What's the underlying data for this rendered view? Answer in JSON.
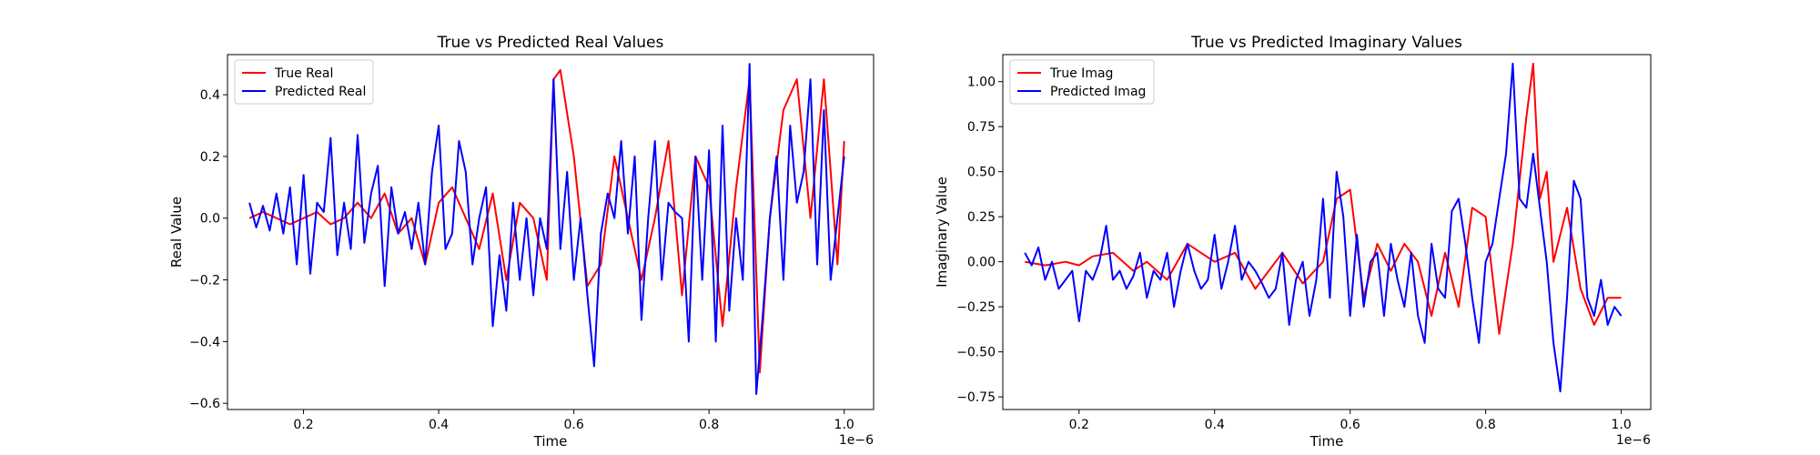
{
  "chart_data": [
    {
      "type": "line",
      "title": "True vs Predicted Real Values",
      "xlabel": "Time",
      "ylabel": "Real Value",
      "x_offset_label": "1e−6",
      "xlim": [
        0.0875,
        1.0435
      ],
      "ylim": [
        -0.62,
        0.53
      ],
      "xticks": [
        {
          "v": 0.2,
          "label": "0.2"
        },
        {
          "v": 0.4,
          "label": "0.4"
        },
        {
          "v": 0.6,
          "label": "0.6"
        },
        {
          "v": 0.8,
          "label": "0.8"
        },
        {
          "v": 1.0,
          "label": "1.0"
        }
      ],
      "yticks": [
        {
          "v": -0.6,
          "label": "−0.6"
        },
        {
          "v": -0.4,
          "label": "−0.4"
        },
        {
          "v": -0.2,
          "label": "−0.2"
        },
        {
          "v": 0.0,
          "label": "0.0"
        },
        {
          "v": 0.2,
          "label": "0.2"
        },
        {
          "v": 0.4,
          "label": "0.4"
        }
      ],
      "legend_position": "top-left",
      "grid": false,
      "series": [
        {
          "name": "True Real",
          "color": "#ff0000",
          "x": [
            0.12,
            0.14,
            0.16,
            0.18,
            0.2,
            0.22,
            0.24,
            0.26,
            0.28,
            0.3,
            0.32,
            0.34,
            0.36,
            0.38,
            0.4,
            0.42,
            0.44,
            0.46,
            0.48,
            0.5,
            0.52,
            0.54,
            0.56,
            0.57,
            0.58,
            0.6,
            0.62,
            0.64,
            0.66,
            0.68,
            0.7,
            0.72,
            0.74,
            0.76,
            0.78,
            0.8,
            0.82,
            0.84,
            0.86,
            0.875,
            0.89,
            0.91,
            0.93,
            0.95,
            0.97,
            0.99,
            1.0
          ],
          "y": [
            0.0,
            0.02,
            0.0,
            -0.02,
            0.0,
            0.02,
            -0.02,
            0.0,
            0.05,
            0.0,
            0.08,
            -0.05,
            0.0,
            -0.15,
            0.05,
            0.1,
            0.0,
            -0.1,
            0.08,
            -0.2,
            0.05,
            0.0,
            -0.2,
            0.45,
            0.48,
            0.2,
            -0.22,
            -0.15,
            0.2,
            0.0,
            -0.2,
            0.0,
            0.25,
            -0.25,
            0.2,
            0.1,
            -0.35,
            0.1,
            0.45,
            -0.5,
            0.0,
            0.35,
            0.45,
            0.0,
            0.45,
            -0.15,
            0.25
          ]
        },
        {
          "name": "Predicted Real",
          "color": "#0000ff",
          "x": [
            0.12,
            0.13,
            0.14,
            0.15,
            0.16,
            0.17,
            0.18,
            0.19,
            0.2,
            0.21,
            0.22,
            0.23,
            0.24,
            0.25,
            0.26,
            0.27,
            0.28,
            0.29,
            0.3,
            0.31,
            0.32,
            0.33,
            0.34,
            0.35,
            0.36,
            0.37,
            0.38,
            0.39,
            0.4,
            0.41,
            0.42,
            0.43,
            0.44,
            0.45,
            0.46,
            0.47,
            0.48,
            0.49,
            0.5,
            0.51,
            0.52,
            0.53,
            0.54,
            0.55,
            0.56,
            0.57,
            0.58,
            0.59,
            0.6,
            0.61,
            0.62,
            0.63,
            0.64,
            0.65,
            0.66,
            0.67,
            0.68,
            0.69,
            0.7,
            0.71,
            0.72,
            0.73,
            0.74,
            0.75,
            0.76,
            0.77,
            0.78,
            0.79,
            0.8,
            0.81,
            0.82,
            0.83,
            0.84,
            0.85,
            0.86,
            0.87,
            0.88,
            0.89,
            0.9,
            0.91,
            0.92,
            0.93,
            0.94,
            0.95,
            0.96,
            0.97,
            0.98,
            0.99,
            1.0
          ],
          "y": [
            0.05,
            -0.03,
            0.04,
            -0.04,
            0.08,
            -0.05,
            0.1,
            -0.15,
            0.14,
            -0.18,
            0.05,
            0.02,
            0.26,
            -0.12,
            0.05,
            -0.1,
            0.27,
            -0.08,
            0.08,
            0.17,
            -0.22,
            0.1,
            -0.05,
            0.02,
            -0.1,
            0.05,
            -0.15,
            0.15,
            0.3,
            -0.1,
            -0.05,
            0.25,
            0.15,
            -0.15,
            0.0,
            0.1,
            -0.35,
            -0.12,
            -0.3,
            0.05,
            -0.2,
            0.0,
            -0.25,
            0.0,
            -0.1,
            0.45,
            -0.1,
            0.15,
            -0.2,
            0.0,
            -0.25,
            -0.48,
            -0.05,
            0.08,
            0.0,
            0.25,
            -0.05,
            0.2,
            -0.33,
            0.0,
            0.25,
            -0.2,
            0.05,
            0.02,
            0.0,
            -0.4,
            0.2,
            -0.2,
            0.22,
            -0.4,
            0.3,
            -0.3,
            0.0,
            -0.2,
            0.5,
            -0.57,
            -0.3,
            0.0,
            0.2,
            -0.2,
            0.3,
            0.05,
            0.15,
            0.45,
            -0.15,
            0.35,
            -0.2,
            0.0,
            0.2
          ]
        }
      ]
    },
    {
      "type": "line",
      "title": "True vs Predicted Imaginary Values",
      "xlabel": "Time",
      "ylabel": "Imaginary Value",
      "x_offset_label": "1e−6",
      "xlim": [
        0.0875,
        1.0435
      ],
      "ylim": [
        -0.82,
        1.15
      ],
      "xticks": [
        {
          "v": 0.2,
          "label": "0.2"
        },
        {
          "v": 0.4,
          "label": "0.4"
        },
        {
          "v": 0.6,
          "label": "0.6"
        },
        {
          "v": 0.8,
          "label": "0.8"
        },
        {
          "v": 1.0,
          "label": "1.0"
        }
      ],
      "yticks": [
        {
          "v": -0.75,
          "label": "−0.75"
        },
        {
          "v": -0.5,
          "label": "−0.50"
        },
        {
          "v": -0.25,
          "label": "−0.25"
        },
        {
          "v": 0.0,
          "label": "0.00"
        },
        {
          "v": 0.25,
          "label": "0.25"
        },
        {
          "v": 0.5,
          "label": "0.50"
        },
        {
          "v": 0.75,
          "label": "0.75"
        },
        {
          "v": 1.0,
          "label": "1.00"
        }
      ],
      "legend_position": "top-left",
      "grid": false,
      "series": [
        {
          "name": "True Imag",
          "color": "#ff0000",
          "x": [
            0.12,
            0.15,
            0.18,
            0.2,
            0.22,
            0.25,
            0.28,
            0.3,
            0.33,
            0.36,
            0.4,
            0.43,
            0.46,
            0.5,
            0.53,
            0.56,
            0.58,
            0.6,
            0.62,
            0.64,
            0.66,
            0.68,
            0.7,
            0.72,
            0.74,
            0.76,
            0.78,
            0.8,
            0.82,
            0.84,
            0.86,
            0.87,
            0.88,
            0.89,
            0.9,
            0.92,
            0.94,
            0.96,
            0.98,
            1.0
          ],
          "y": [
            0.0,
            -0.02,
            0.0,
            -0.02,
            0.03,
            0.05,
            -0.05,
            0.0,
            -0.1,
            0.1,
            0.0,
            0.05,
            -0.15,
            0.05,
            -0.12,
            0.0,
            0.35,
            0.4,
            -0.2,
            0.1,
            -0.05,
            0.1,
            0.0,
            -0.3,
            0.05,
            -0.25,
            0.3,
            0.25,
            -0.4,
            0.1,
            0.8,
            1.1,
            0.35,
            0.5,
            0.0,
            0.3,
            -0.15,
            -0.35,
            -0.2,
            -0.2
          ]
        },
        {
          "name": "Predicted Imag",
          "color": "#0000ff",
          "x": [
            0.12,
            0.13,
            0.14,
            0.15,
            0.16,
            0.17,
            0.18,
            0.19,
            0.2,
            0.21,
            0.22,
            0.23,
            0.24,
            0.25,
            0.26,
            0.27,
            0.28,
            0.29,
            0.3,
            0.31,
            0.32,
            0.33,
            0.34,
            0.35,
            0.36,
            0.37,
            0.38,
            0.39,
            0.4,
            0.41,
            0.42,
            0.43,
            0.44,
            0.45,
            0.46,
            0.47,
            0.48,
            0.49,
            0.5,
            0.51,
            0.52,
            0.53,
            0.54,
            0.55,
            0.56,
            0.57,
            0.58,
            0.59,
            0.6,
            0.61,
            0.62,
            0.63,
            0.64,
            0.65,
            0.66,
            0.67,
            0.68,
            0.69,
            0.7,
            0.71,
            0.72,
            0.73,
            0.74,
            0.75,
            0.76,
            0.77,
            0.78,
            0.79,
            0.8,
            0.81,
            0.82,
            0.83,
            0.84,
            0.85,
            0.86,
            0.87,
            0.88,
            0.89,
            0.9,
            0.91,
            0.92,
            0.93,
            0.94,
            0.95,
            0.96,
            0.97,
            0.98,
            0.99,
            1.0
          ],
          "y": [
            0.05,
            -0.02,
            0.08,
            -0.1,
            0.0,
            -0.15,
            -0.1,
            -0.05,
            -0.33,
            -0.05,
            -0.1,
            0.0,
            0.2,
            -0.1,
            -0.05,
            -0.15,
            -0.08,
            0.05,
            -0.2,
            -0.05,
            -0.1,
            0.05,
            -0.25,
            -0.05,
            0.1,
            -0.05,
            -0.15,
            -0.1,
            0.15,
            -0.15,
            0.0,
            0.2,
            -0.1,
            0.0,
            -0.05,
            -0.12,
            -0.2,
            -0.15,
            0.05,
            -0.35,
            -0.1,
            0.0,
            -0.3,
            -0.1,
            0.35,
            -0.2,
            0.5,
            0.25,
            -0.3,
            0.15,
            -0.25,
            0.0,
            0.05,
            -0.3,
            0.1,
            -0.1,
            -0.25,
            0.05,
            -0.3,
            -0.45,
            0.1,
            -0.15,
            -0.2,
            0.28,
            0.35,
            0.1,
            -0.2,
            -0.45,
            0.0,
            0.1,
            0.35,
            0.6,
            1.1,
            0.35,
            0.3,
            0.6,
            0.3,
            0.0,
            -0.45,
            -0.72,
            -0.2,
            0.45,
            0.35,
            -0.2,
            -0.3,
            -0.1,
            -0.35,
            -0.25,
            -0.3
          ]
        }
      ]
    }
  ]
}
